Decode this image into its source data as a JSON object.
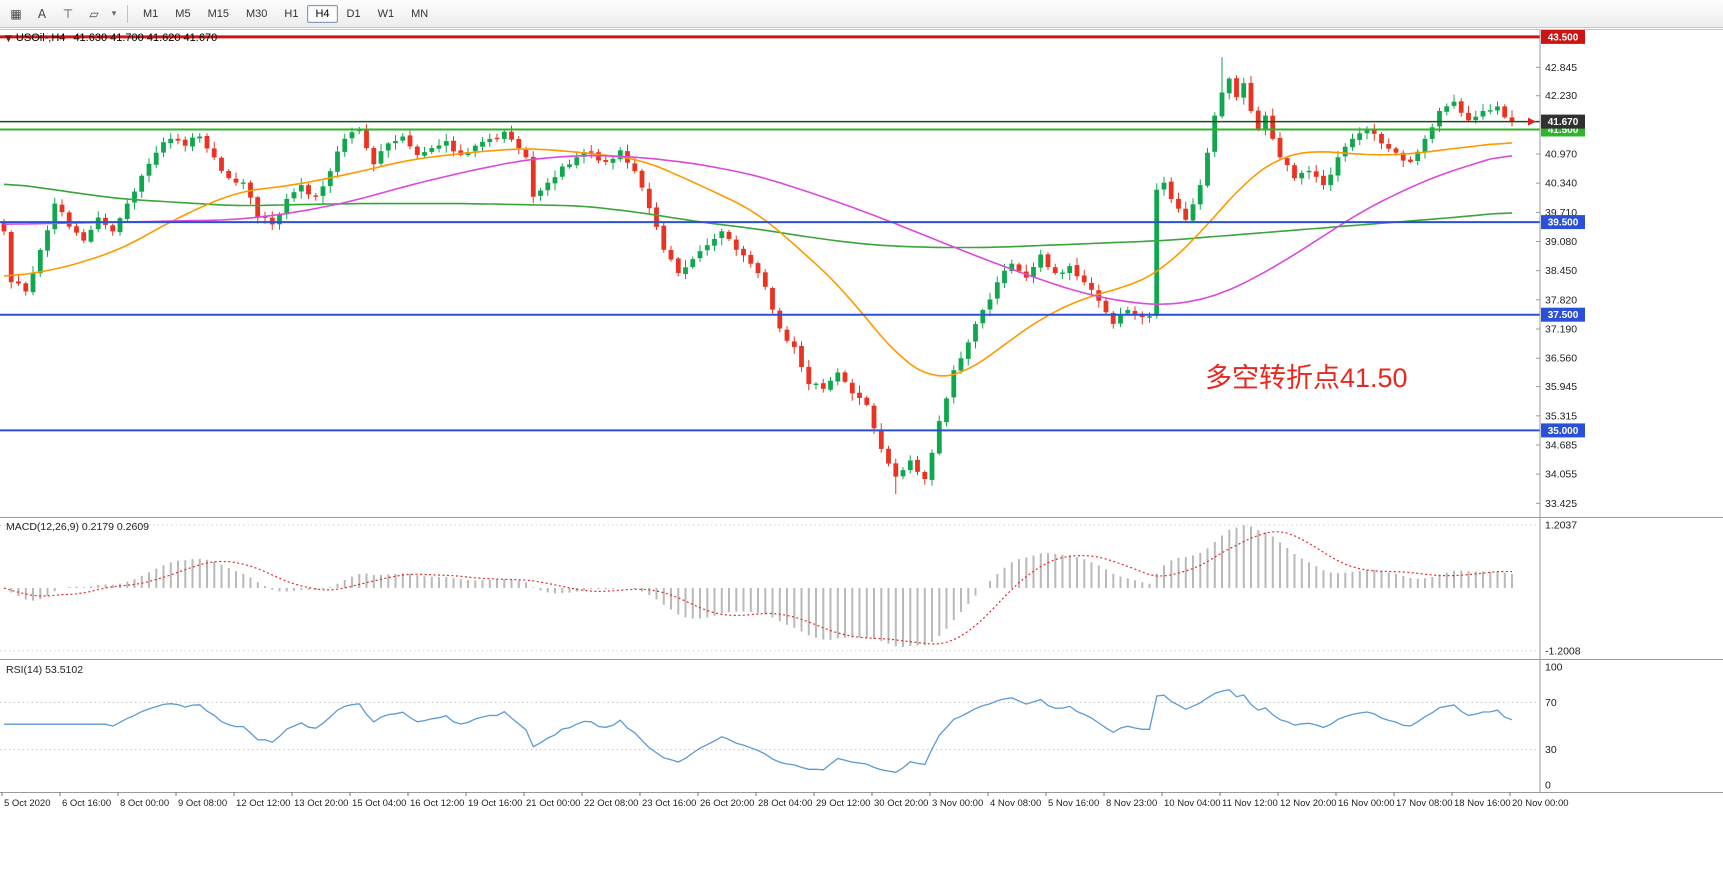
{
  "toolbar": {
    "icons": [
      {
        "name": "chart-grid-icon",
        "glyph": "▦"
      },
      {
        "name": "cursor-mode-icon",
        "glyph": "A"
      },
      {
        "name": "crosshair-tool-icon",
        "glyph": "⊤"
      },
      {
        "name": "shapes-tool-icon",
        "glyph": "▱"
      },
      {
        "name": "shapes-caret-icon",
        "glyph": "▾"
      }
    ],
    "timeframes": [
      "M1",
      "M5",
      "M15",
      "M30",
      "H1",
      "H4",
      "D1",
      "W1",
      "MN"
    ],
    "selected_timeframe": "H4"
  },
  "chart": {
    "dropdown_icon": "▼",
    "symbol_period": "USOil-,H4",
    "ohlc_text": "41.630 41.700 41.620 41.670",
    "annotation": {
      "text": "多空转折点41.50",
      "color": "#e8281e"
    }
  },
  "macd": {
    "label": "MACD(12,26,9) 0.2179 0.2609",
    "axis_labels": [
      "1.2037",
      "-1.2008"
    ]
  },
  "rsi": {
    "label": "RSI(14) 53.5102",
    "axis_labels": [
      "100",
      "70",
      "30",
      "0"
    ],
    "level_lines": [
      70,
      30
    ]
  },
  "time_axis": [
    "5 Oct 2020",
    "6 Oct 16:00",
    "8 Oct 00:00",
    "9 Oct 08:00",
    "12 Oct 12:00",
    "13 Oct 20:00",
    "15 Oct 04:00",
    "16 Oct 12:00",
    "19 Oct 16:00",
    "21 Oct 00:00",
    "22 Oct 08:00",
    "23 Oct 16:00",
    "26 Oct 20:00",
    "28 Oct 04:00",
    "29 Oct 12:00",
    "30 Oct 20:00",
    "3 Nov 00:00",
    "4 Nov 08:00",
    "5 Nov 16:00",
    "8 Nov 23:00",
    "10 Nov 04:00",
    "11 Nov 12:00",
    "12 Nov 20:00",
    "16 Nov 00:00",
    "17 Nov 08:00",
    "18 Nov 16:00",
    "20 Nov 00:00"
  ],
  "chart_data": {
    "type": "candlestick",
    "symbol": "USOil-",
    "timeframe": "H4",
    "bars": 209,
    "last_price": 41.67,
    "price_range": {
      "max": 43.65,
      "min": 33.15
    },
    "y_ticks": [
      "42.845",
      "42.230",
      "40.970",
      "40.340",
      "39.710",
      "39.080",
      "38.450",
      "37.820",
      "37.190",
      "36.560",
      "35.945",
      "35.315",
      "34.685",
      "34.055",
      "33.425"
    ],
    "close_anchors": [
      [
        0,
        39.3
      ],
      [
        1,
        38.2
      ],
      [
        3,
        38.0
      ],
      [
        5,
        38.9
      ],
      [
        7,
        39.9
      ],
      [
        9,
        39.4
      ],
      [
        11,
        39.1
      ],
      [
        13,
        39.6
      ],
      [
        15,
        39.3
      ],
      [
        17,
        39.9
      ],
      [
        19,
        40.5
      ],
      [
        21,
        41.0
      ],
      [
        23,
        41.3
      ],
      [
        25,
        41.15
      ],
      [
        27,
        41.35
      ],
      [
        29,
        40.9
      ],
      [
        31,
        40.45
      ],
      [
        33,
        40.35
      ],
      [
        35,
        39.6
      ],
      [
        37,
        39.45
      ],
      [
        39,
        40.0
      ],
      [
        41,
        40.3
      ],
      [
        43,
        40.05
      ],
      [
        45,
        40.6
      ],
      [
        47,
        41.3
      ],
      [
        49,
        41.5
      ],
      [
        51,
        40.75
      ],
      [
        53,
        41.2
      ],
      [
        55,
        41.35
      ],
      [
        57,
        40.95
      ],
      [
        59,
        41.1
      ],
      [
        61,
        41.25
      ],
      [
        63,
        40.95
      ],
      [
        65,
        41.15
      ],
      [
        67,
        41.3
      ],
      [
        69,
        41.45
      ],
      [
        71,
        41.1
      ],
      [
        72,
        40.9
      ],
      [
        73,
        40.05
      ],
      [
        75,
        40.35
      ],
      [
        77,
        40.7
      ],
      [
        79,
        40.9
      ],
      [
        81,
        41.0
      ],
      [
        83,
        40.8
      ],
      [
        85,
        41.05
      ],
      [
        87,
        40.6
      ],
      [
        89,
        39.8
      ],
      [
        91,
        38.9
      ],
      [
        93,
        38.4
      ],
      [
        95,
        38.7
      ],
      [
        97,
        39.0
      ],
      [
        99,
        39.3
      ],
      [
        101,
        38.9
      ],
      [
        103,
        38.6
      ],
      [
        105,
        38.1
      ],
      [
        107,
        37.2
      ],
      [
        109,
        36.8
      ],
      [
        111,
        36.0
      ],
      [
        113,
        35.9
      ],
      [
        115,
        36.25
      ],
      [
        117,
        35.8
      ],
      [
        119,
        35.55
      ],
      [
        121,
        34.6
      ],
      [
        123,
        34.0
      ],
      [
        125,
        34.35
      ],
      [
        127,
        33.95
      ],
      [
        129,
        35.2
      ],
      [
        131,
        36.3
      ],
      [
        133,
        36.9
      ],
      [
        135,
        37.6
      ],
      [
        137,
        38.2
      ],
      [
        139,
        38.6
      ],
      [
        141,
        38.3
      ],
      [
        143,
        38.8
      ],
      [
        145,
        38.4
      ],
      [
        147,
        38.55
      ],
      [
        149,
        38.2
      ],
      [
        151,
        37.8
      ],
      [
        153,
        37.3
      ],
      [
        155,
        37.6
      ],
      [
        157,
        37.45
      ],
      [
        158,
        37.45
      ],
      [
        159,
        40.2
      ],
      [
        160,
        40.35
      ],
      [
        161,
        40.0
      ],
      [
        163,
        39.55
      ],
      [
        165,
        40.3
      ],
      [
        166,
        41.0
      ],
      [
        167,
        41.8
      ],
      [
        168,
        42.3
      ],
      [
        169,
        42.6
      ],
      [
        170,
        42.2
      ],
      [
        171,
        42.5
      ],
      [
        172,
        41.9
      ],
      [
        173,
        41.5
      ],
      [
        174,
        41.8
      ],
      [
        175,
        41.3
      ],
      [
        176,
        40.9
      ],
      [
        178,
        40.45
      ],
      [
        180,
        40.6
      ],
      [
        182,
        40.3
      ],
      [
        184,
        40.9
      ],
      [
        186,
        41.3
      ],
      [
        188,
        41.5
      ],
      [
        190,
        41.2
      ],
      [
        192,
        41.0
      ],
      [
        194,
        40.8
      ],
      [
        196,
        41.3
      ],
      [
        198,
        41.9
      ],
      [
        200,
        42.1
      ],
      [
        202,
        41.7
      ],
      [
        204,
        41.9
      ],
      [
        206,
        42.0
      ],
      [
        208,
        41.67
      ]
    ],
    "extreme_high": {
      "bar": 168,
      "price": 43.06
    },
    "extreme_low": {
      "bar": 123,
      "price": 33.62
    },
    "levels": [
      {
        "price": 43.5,
        "badge": "43.500",
        "color": "#cc1414",
        "badge_bg": "#cc1414",
        "width": 3
      },
      {
        "price": 41.5,
        "badge": "41.500",
        "color": "#2db52d",
        "badge_bg": "#2db52d",
        "width": 2
      },
      {
        "price": 39.5,
        "badge": "39.500",
        "color": "#2b50d8",
        "badge_bg": "#2b50d8",
        "width": 2
      },
      {
        "price": 37.5,
        "badge": "37.500",
        "color": "#2b50d8",
        "badge_bg": "#2b50d8",
        "width": 2
      },
      {
        "price": 35.0,
        "badge": "35.000",
        "color": "#2b50d8",
        "badge_bg": "#2b50d8",
        "width": 2
      },
      {
        "price": 41.67,
        "badge": "41.670",
        "color": "#145214",
        "badge_bg": "#303030",
        "width": 1.5
      }
    ],
    "ma_lines": [
      {
        "name": "ma-green-line",
        "color": "#3aa63a",
        "anchors": [
          [
            0,
            40.35
          ],
          [
            16,
            40.0
          ],
          [
            32,
            39.85
          ],
          [
            48,
            39.9
          ],
          [
            64,
            39.9
          ],
          [
            80,
            39.85
          ],
          [
            88,
            39.7
          ],
          [
            96,
            39.5
          ],
          [
            104,
            39.35
          ],
          [
            112,
            39.15
          ],
          [
            120,
            39.0
          ],
          [
            128,
            38.95
          ],
          [
            136,
            38.95
          ],
          [
            144,
            39.0
          ],
          [
            152,
            39.05
          ],
          [
            160,
            39.1
          ],
          [
            168,
            39.2
          ],
          [
            176,
            39.3
          ],
          [
            184,
            39.4
          ],
          [
            192,
            39.5
          ],
          [
            200,
            39.6
          ],
          [
            208,
            39.72
          ]
        ]
      },
      {
        "name": "ma-orange-line",
        "color": "#ff9900",
        "anchors": [
          [
            0,
            38.3
          ],
          [
            8,
            38.5
          ],
          [
            16,
            38.9
          ],
          [
            24,
            39.6
          ],
          [
            32,
            40.15
          ],
          [
            40,
            40.3
          ],
          [
            48,
            40.55
          ],
          [
            56,
            40.85
          ],
          [
            64,
            41.0
          ],
          [
            72,
            41.1
          ],
          [
            80,
            41.0
          ],
          [
            88,
            40.85
          ],
          [
            96,
            40.3
          ],
          [
            104,
            39.7
          ],
          [
            112,
            38.6
          ],
          [
            116,
            38.0
          ],
          [
            120,
            37.2
          ],
          [
            124,
            36.5
          ],
          [
            128,
            36.1
          ],
          [
            132,
            36.2
          ],
          [
            136,
            36.6
          ],
          [
            140,
            37.1
          ],
          [
            144,
            37.5
          ],
          [
            148,
            37.8
          ],
          [
            152,
            38.0
          ],
          [
            156,
            38.15
          ],
          [
            160,
            38.5
          ],
          [
            164,
            39.1
          ],
          [
            168,
            39.8
          ],
          [
            172,
            40.5
          ],
          [
            176,
            40.9
          ],
          [
            180,
            41.05
          ],
          [
            184,
            41.0
          ],
          [
            188,
            40.95
          ],
          [
            192,
            40.95
          ],
          [
            196,
            41.0
          ],
          [
            200,
            41.1
          ],
          [
            204,
            41.15
          ],
          [
            208,
            41.25
          ]
        ]
      },
      {
        "name": "ma-magenta-line",
        "color": "#da4bda",
        "anchors": [
          [
            0,
            39.45
          ],
          [
            16,
            39.5
          ],
          [
            32,
            39.55
          ],
          [
            40,
            39.7
          ],
          [
            48,
            39.95
          ],
          [
            56,
            40.3
          ],
          [
            64,
            40.6
          ],
          [
            72,
            40.85
          ],
          [
            80,
            40.95
          ],
          [
            88,
            40.9
          ],
          [
            96,
            40.75
          ],
          [
            104,
            40.5
          ],
          [
            112,
            40.1
          ],
          [
            120,
            39.65
          ],
          [
            128,
            39.15
          ],
          [
            136,
            38.65
          ],
          [
            144,
            38.2
          ],
          [
            148,
            38.0
          ],
          [
            152,
            37.85
          ],
          [
            156,
            37.75
          ],
          [
            160,
            37.7
          ],
          [
            164,
            37.78
          ],
          [
            168,
            37.95
          ],
          [
            172,
            38.25
          ],
          [
            176,
            38.6
          ],
          [
            180,
            39.0
          ],
          [
            184,
            39.4
          ],
          [
            188,
            39.8
          ],
          [
            192,
            40.1
          ],
          [
            196,
            40.4
          ],
          [
            200,
            40.62
          ],
          [
            204,
            40.82
          ],
          [
            208,
            41.0
          ]
        ]
      }
    ],
    "colors": {
      "bull": "#10a74f",
      "bear": "#ea3423",
      "macd_hist": "#b9b9b9",
      "macd_signal": "#e02a2a",
      "rsi_line": "#5b9bd5"
    },
    "macd_guides": [
      1.2037,
      -1.2008
    ]
  }
}
